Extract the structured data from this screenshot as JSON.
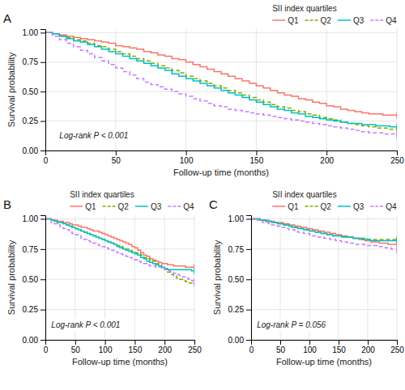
{
  "chart_data": [
    {
      "type": "step",
      "title": "A",
      "xlabel": "Follow-up time (months)",
      "ylabel": "Survival probability",
      "legend_title": "SII index quartiles",
      "legend": "top-right",
      "grid": true,
      "annotations": [
        "Log-rank P < 0.001"
      ],
      "xlim": [
        0,
        250
      ],
      "xticks": [
        0,
        50,
        100,
        150,
        200,
        250
      ],
      "ylim": [
        0.0,
        1.03
      ],
      "yticks": [
        {
          "value": 0.0,
          "label": "0.00"
        },
        0.25,
        {
          "value": 0.5,
          "label": "0.50"
        },
        0.75,
        {
          "value": 1.0,
          "label": "1.00"
        }
      ],
      "x": [
        0,
        5,
        10,
        15,
        20,
        25,
        30,
        35,
        40,
        45,
        50,
        55,
        60,
        65,
        70,
        75,
        80,
        85,
        90,
        95,
        100,
        105,
        110,
        115,
        120,
        125,
        130,
        135,
        140,
        145,
        150,
        155,
        160,
        165,
        170,
        175,
        180,
        185,
        190,
        195,
        200,
        205,
        210,
        215,
        220,
        225,
        230,
        235,
        240,
        245,
        250
      ],
      "series": [
        {
          "name": "Q1",
          "color": "#F8766D",
          "line_style": "solid",
          "values": [
            1.0,
            0.99,
            0.98,
            0.97,
            0.96,
            0.95,
            0.94,
            0.93,
            0.92,
            0.91,
            0.89,
            0.88,
            0.87,
            0.86,
            0.84,
            0.83,
            0.81,
            0.8,
            0.78,
            0.77,
            0.75,
            0.73,
            0.71,
            0.69,
            0.67,
            0.65,
            0.63,
            0.61,
            0.59,
            0.57,
            0.55,
            0.53,
            0.51,
            0.49,
            0.47,
            0.46,
            0.44,
            0.43,
            0.41,
            0.4,
            0.38,
            0.37,
            0.35,
            0.34,
            0.33,
            0.32,
            0.31,
            0.31,
            0.3,
            0.3,
            0.3
          ]
        },
        {
          "name": "Q2",
          "color": "#7CAE00",
          "line_style": "dashed",
          "values": [
            1.0,
            0.99,
            0.97,
            0.96,
            0.94,
            0.93,
            0.91,
            0.89,
            0.88,
            0.86,
            0.84,
            0.82,
            0.8,
            0.78,
            0.76,
            0.74,
            0.72,
            0.7,
            0.68,
            0.66,
            0.63,
            0.61,
            0.59,
            0.57,
            0.55,
            0.53,
            0.51,
            0.49,
            0.47,
            0.45,
            0.43,
            0.41,
            0.39,
            0.37,
            0.36,
            0.34,
            0.33,
            0.31,
            0.3,
            0.28,
            0.27,
            0.26,
            0.24,
            0.23,
            0.22,
            0.21,
            0.2,
            0.19,
            0.19,
            0.18,
            0.18
          ]
        },
        {
          "name": "Q3",
          "color": "#00BFC4",
          "line_style": "solid",
          "values": [
            1.0,
            0.99,
            0.97,
            0.95,
            0.93,
            0.92,
            0.9,
            0.88,
            0.86,
            0.84,
            0.82,
            0.8,
            0.78,
            0.76,
            0.74,
            0.72,
            0.7,
            0.68,
            0.65,
            0.63,
            0.61,
            0.59,
            0.57,
            0.55,
            0.53,
            0.51,
            0.49,
            0.47,
            0.45,
            0.43,
            0.41,
            0.39,
            0.37,
            0.35,
            0.34,
            0.32,
            0.31,
            0.29,
            0.28,
            0.27,
            0.26,
            0.25,
            0.24,
            0.23,
            0.23,
            0.22,
            0.22,
            0.21,
            0.21,
            0.2,
            0.2
          ]
        },
        {
          "name": "Q4",
          "color": "#C77CFF",
          "line_style": "dashed",
          "values": [
            1.0,
            0.97,
            0.94,
            0.91,
            0.88,
            0.85,
            0.82,
            0.79,
            0.76,
            0.73,
            0.7,
            0.67,
            0.64,
            0.61,
            0.58,
            0.56,
            0.54,
            0.52,
            0.5,
            0.48,
            0.46,
            0.44,
            0.42,
            0.4,
            0.38,
            0.37,
            0.35,
            0.34,
            0.33,
            0.32,
            0.31,
            0.3,
            0.29,
            0.28,
            0.27,
            0.26,
            0.25,
            0.24,
            0.23,
            0.22,
            0.21,
            0.2,
            0.19,
            0.18,
            0.17,
            0.16,
            0.15,
            0.15,
            0.14,
            0.14,
            0.13
          ]
        }
      ]
    },
    {
      "type": "step",
      "title": "B",
      "xlabel": "Follow-up time (months)",
      "ylabel": "Survival probability",
      "legend_title": "SII index quartiles",
      "legend": "top-right",
      "grid": true,
      "annotations": [
        "Log-rank P < 0.001"
      ],
      "xlim": [
        0,
        250
      ],
      "xticks": [
        0,
        50,
        100,
        150,
        200,
        250
      ],
      "ylim": [
        0.0,
        1.03
      ],
      "yticks": [
        {
          "value": 0.0,
          "label": "0.00"
        },
        0.25,
        {
          "value": 0.5,
          "label": "0.50"
        },
        0.75,
        {
          "value": 1.0,
          "label": "1.00"
        }
      ],
      "x": [
        0,
        5,
        10,
        15,
        20,
        25,
        30,
        35,
        40,
        45,
        50,
        55,
        60,
        65,
        70,
        75,
        80,
        85,
        90,
        95,
        100,
        105,
        110,
        115,
        120,
        125,
        130,
        135,
        140,
        145,
        150,
        155,
        160,
        165,
        170,
        175,
        180,
        185,
        190,
        195,
        200,
        205,
        210,
        215,
        220,
        225,
        230,
        235,
        240,
        245,
        250
      ],
      "series": [
        {
          "name": "Q1",
          "color": "#F8766D",
          "line_style": "solid",
          "values": [
            1.0,
            1.0,
            0.99,
            0.99,
            0.98,
            0.98,
            0.97,
            0.97,
            0.96,
            0.95,
            0.95,
            0.94,
            0.93,
            0.93,
            0.92,
            0.91,
            0.9,
            0.9,
            0.89,
            0.88,
            0.87,
            0.86,
            0.85,
            0.84,
            0.83,
            0.82,
            0.81,
            0.8,
            0.79,
            0.77,
            0.76,
            0.74,
            0.72,
            0.7,
            0.69,
            0.67,
            0.66,
            0.65,
            0.64,
            0.63,
            0.63,
            0.62,
            0.62,
            0.61,
            0.61,
            0.61,
            0.61,
            0.6,
            0.6,
            0.6,
            0.6
          ]
        },
        {
          "name": "Q2",
          "color": "#7CAE00",
          "line_style": "dashed",
          "values": [
            1.0,
            1.0,
            0.99,
            0.98,
            0.97,
            0.97,
            0.96,
            0.95,
            0.94,
            0.93,
            0.92,
            0.91,
            0.9,
            0.89,
            0.88,
            0.87,
            0.86,
            0.85,
            0.84,
            0.83,
            0.82,
            0.81,
            0.8,
            0.79,
            0.78,
            0.77,
            0.76,
            0.75,
            0.74,
            0.73,
            0.72,
            0.71,
            0.7,
            0.68,
            0.67,
            0.66,
            0.65,
            0.63,
            0.62,
            0.6,
            0.58,
            0.56,
            0.54,
            0.53,
            0.51,
            0.5,
            0.49,
            0.48,
            0.47,
            0.47,
            0.47
          ]
        },
        {
          "name": "Q3",
          "color": "#00BFC4",
          "line_style": "solid",
          "values": [
            1.0,
            1.0,
            0.99,
            0.98,
            0.97,
            0.97,
            0.96,
            0.95,
            0.94,
            0.93,
            0.92,
            0.91,
            0.9,
            0.89,
            0.88,
            0.87,
            0.86,
            0.85,
            0.84,
            0.83,
            0.82,
            0.81,
            0.8,
            0.79,
            0.77,
            0.76,
            0.75,
            0.74,
            0.73,
            0.72,
            0.71,
            0.7,
            0.68,
            0.67,
            0.65,
            0.64,
            0.63,
            0.62,
            0.61,
            0.6,
            0.59,
            0.58,
            0.58,
            0.58,
            0.58,
            0.58,
            0.58,
            0.58,
            0.58,
            0.57,
            0.57
          ]
        },
        {
          "name": "Q4",
          "color": "#C77CFF",
          "line_style": "dashed",
          "values": [
            1.0,
            0.99,
            0.97,
            0.96,
            0.95,
            0.93,
            0.92,
            0.91,
            0.89,
            0.88,
            0.87,
            0.86,
            0.84,
            0.83,
            0.82,
            0.81,
            0.8,
            0.79,
            0.78,
            0.77,
            0.76,
            0.75,
            0.74,
            0.73,
            0.72,
            0.71,
            0.7,
            0.69,
            0.68,
            0.67,
            0.66,
            0.65,
            0.64,
            0.63,
            0.62,
            0.61,
            0.61,
            0.6,
            0.6,
            0.59,
            0.58,
            0.57,
            0.56,
            0.55,
            0.54,
            0.53,
            0.52,
            0.51,
            0.5,
            0.49,
            0.48
          ]
        }
      ]
    },
    {
      "type": "step",
      "title": "C",
      "xlabel": "Follow-up time (months)",
      "ylabel": "Survival probability",
      "legend_title": "SII index quartiles",
      "legend": "top-right",
      "grid": true,
      "annotations": [
        "Log-rank P = 0.056"
      ],
      "xlim": [
        0,
        250
      ],
      "xticks": [
        0,
        50,
        100,
        150,
        200,
        250
      ],
      "ylim": [
        0.0,
        1.03
      ],
      "yticks": [
        {
          "value": 0.0,
          "label": "0.00"
        },
        0.25,
        {
          "value": 0.5,
          "label": "0.50"
        },
        0.75,
        {
          "value": 1.0,
          "label": "1.00"
        }
      ],
      "x": [
        0,
        5,
        10,
        15,
        20,
        25,
        30,
        35,
        40,
        45,
        50,
        55,
        60,
        65,
        70,
        75,
        80,
        85,
        90,
        95,
        100,
        105,
        110,
        115,
        120,
        125,
        130,
        135,
        140,
        145,
        150,
        155,
        160,
        165,
        170,
        175,
        180,
        185,
        190,
        195,
        200,
        205,
        210,
        215,
        220,
        225,
        230,
        235,
        240,
        245,
        250
      ],
      "series": [
        {
          "name": "Q1",
          "color": "#F8766D",
          "line_style": "solid",
          "values": [
            1.0,
            1.0,
            1.0,
            0.99,
            0.99,
            0.99,
            0.98,
            0.98,
            0.97,
            0.97,
            0.97,
            0.96,
            0.96,
            0.95,
            0.95,
            0.94,
            0.94,
            0.93,
            0.93,
            0.92,
            0.92,
            0.91,
            0.91,
            0.9,
            0.9,
            0.89,
            0.89,
            0.88,
            0.88,
            0.87,
            0.87,
            0.86,
            0.86,
            0.85,
            0.85,
            0.84,
            0.84,
            0.83,
            0.83,
            0.82,
            0.82,
            0.81,
            0.81,
            0.81,
            0.8,
            0.8,
            0.8,
            0.79,
            0.79,
            0.79,
            0.79
          ]
        },
        {
          "name": "Q2",
          "color": "#7CAE00",
          "line_style": "dashed",
          "values": [
            1.0,
            1.0,
            1.0,
            0.99,
            0.99,
            0.98,
            0.98,
            0.97,
            0.97,
            0.96,
            0.96,
            0.95,
            0.95,
            0.94,
            0.94,
            0.93,
            0.93,
            0.92,
            0.91,
            0.91,
            0.9,
            0.9,
            0.89,
            0.89,
            0.88,
            0.88,
            0.87,
            0.87,
            0.86,
            0.86,
            0.86,
            0.85,
            0.85,
            0.85,
            0.85,
            0.84,
            0.84,
            0.84,
            0.84,
            0.84,
            0.83,
            0.83,
            0.83,
            0.83,
            0.83,
            0.83,
            0.83,
            0.83,
            0.83,
            0.83,
            0.83
          ]
        },
        {
          "name": "Q3",
          "color": "#00BFC4",
          "line_style": "solid",
          "values": [
            1.0,
            1.0,
            1.0,
            0.99,
            0.99,
            0.98,
            0.98,
            0.97,
            0.97,
            0.96,
            0.96,
            0.95,
            0.95,
            0.94,
            0.93,
            0.93,
            0.92,
            0.92,
            0.91,
            0.91,
            0.9,
            0.9,
            0.89,
            0.89,
            0.88,
            0.88,
            0.87,
            0.87,
            0.86,
            0.86,
            0.86,
            0.85,
            0.85,
            0.85,
            0.85,
            0.84,
            0.84,
            0.84,
            0.83,
            0.83,
            0.83,
            0.82,
            0.82,
            0.82,
            0.82,
            0.82,
            0.82,
            0.82,
            0.82,
            0.82,
            0.82
          ]
        },
        {
          "name": "Q4",
          "color": "#C77CFF",
          "line_style": "dashed",
          "values": [
            1.0,
            0.99,
            0.99,
            0.98,
            0.97,
            0.97,
            0.96,
            0.95,
            0.95,
            0.94,
            0.93,
            0.93,
            0.92,
            0.91,
            0.91,
            0.9,
            0.89,
            0.89,
            0.88,
            0.88,
            0.87,
            0.86,
            0.86,
            0.85,
            0.85,
            0.84,
            0.84,
            0.83,
            0.83,
            0.82,
            0.82,
            0.81,
            0.81,
            0.8,
            0.8,
            0.8,
            0.79,
            0.79,
            0.79,
            0.78,
            0.78,
            0.78,
            0.78,
            0.78,
            0.77,
            0.77,
            0.76,
            0.76,
            0.75,
            0.75,
            0.74
          ]
        }
      ]
    }
  ]
}
